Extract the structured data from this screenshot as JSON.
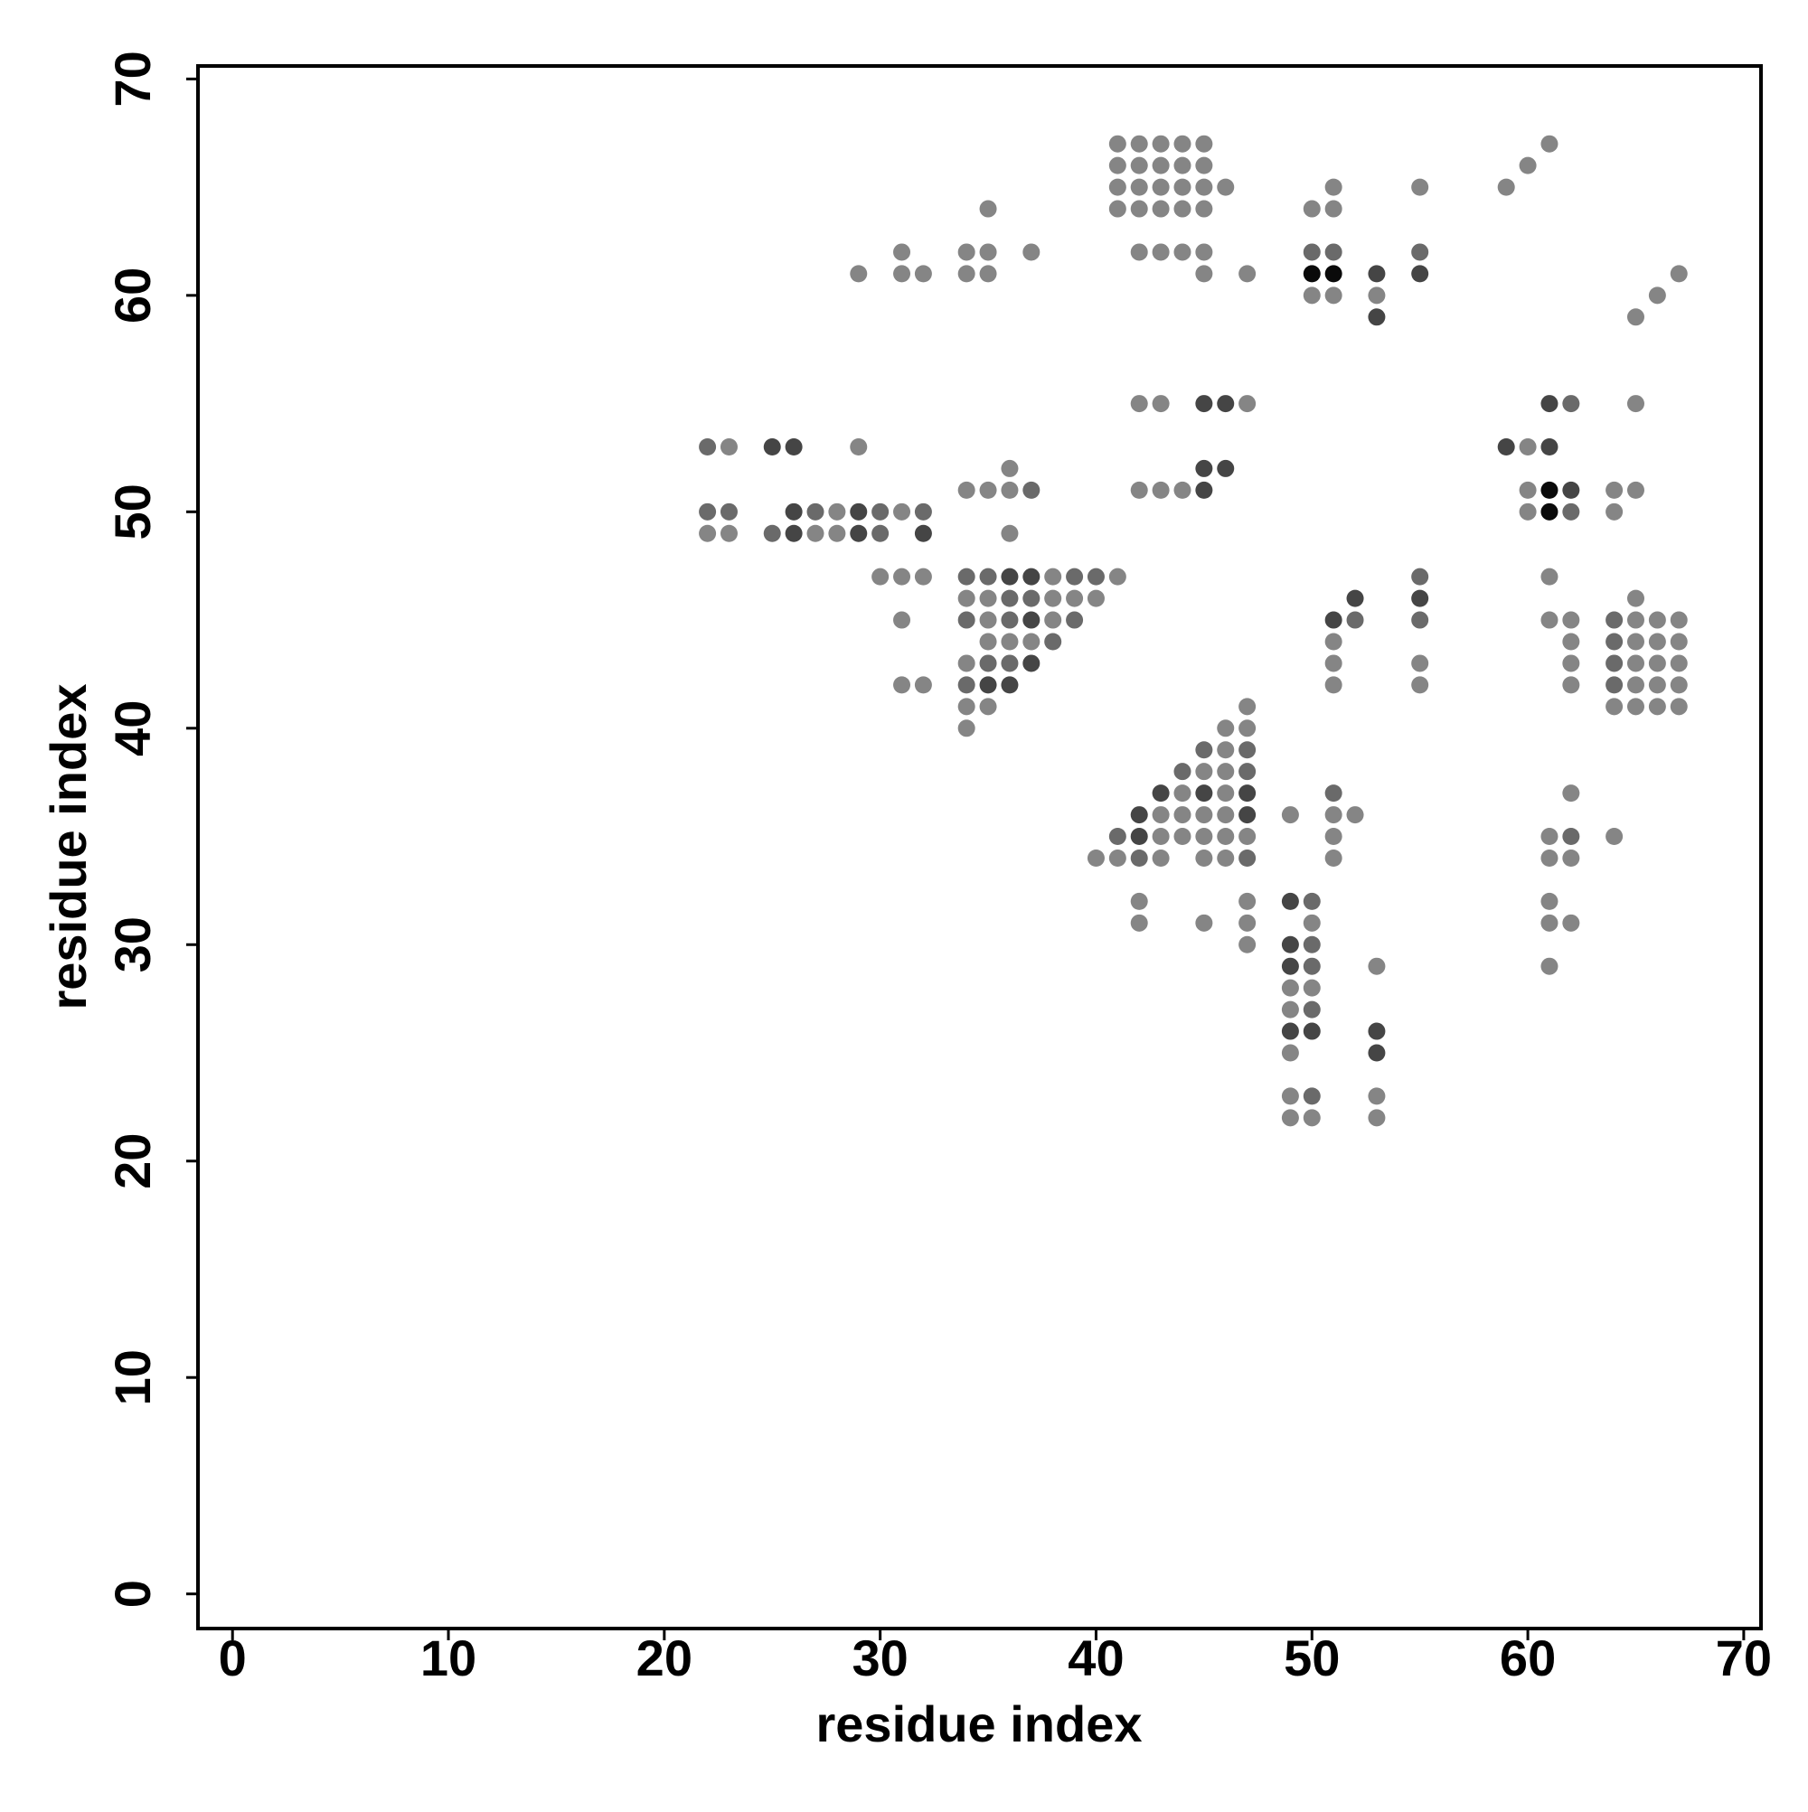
{
  "chart_data": {
    "type": "scatter",
    "xlabel": "residue index",
    "ylabel": "residue index",
    "xlim": [
      -1.6,
      70.8
    ],
    "ylim": [
      -1.6,
      70.6
    ],
    "xticks": [
      0,
      10,
      20,
      30,
      40,
      50,
      60,
      70
    ],
    "yticks": [
      0,
      10,
      20,
      30,
      40,
      50,
      60,
      70
    ],
    "grid": false,
    "series": [
      {
        "color": "#858585",
        "x": [
          41,
          42,
          43,
          44,
          45,
          61,
          41,
          42,
          43,
          44,
          45,
          60,
          41,
          42,
          43,
          44,
          45,
          46,
          51,
          55,
          59,
          35,
          41,
          42,
          43,
          44,
          45,
          50,
          51,
          31,
          34,
          35,
          37,
          42,
          43,
          44,
          45,
          29,
          31,
          32,
          34,
          35,
          45,
          47,
          67,
          50,
          51,
          53,
          66,
          65,
          42,
          43,
          47,
          65,
          23,
          29,
          60,
          36,
          34,
          35,
          36,
          42,
          43,
          44,
          60,
          64,
          65,
          28,
          31,
          60,
          64,
          22,
          23,
          27,
          28,
          36,
          30,
          31,
          32,
          38,
          41,
          61,
          34,
          35,
          38,
          39,
          40,
          65,
          31,
          35,
          38,
          61,
          62,
          65,
          66,
          67,
          35,
          36,
          37,
          51,
          62,
          65,
          66,
          67,
          34,
          51,
          55,
          62,
          65,
          66,
          67,
          31,
          32,
          51,
          55,
          62,
          65,
          66,
          67,
          34,
          35,
          47,
          64,
          65,
          66,
          67,
          34,
          46,
          47,
          46,
          45,
          46,
          44,
          46,
          62,
          43,
          44,
          45,
          46,
          49,
          51,
          52,
          43,
          44,
          45,
          46,
          47,
          51,
          61,
          64,
          40,
          41,
          43,
          45,
          46,
          51,
          61,
          62,
          42,
          47,
          61,
          42,
          45,
          47,
          50,
          61,
          62,
          47,
          53,
          61,
          49,
          50,
          49,
          49,
          49,
          53,
          49,
          50,
          53
        ],
        "values": [
          67,
          67,
          67,
          67,
          67,
          67,
          66,
          66,
          66,
          66,
          66,
          66,
          65,
          65,
          65,
          65,
          65,
          65,
          65,
          65,
          65,
          64,
          64,
          64,
          64,
          64,
          64,
          64,
          64,
          62,
          62,
          62,
          62,
          62,
          62,
          62,
          62,
          61,
          61,
          61,
          61,
          61,
          61,
          61,
          61,
          60,
          60,
          60,
          60,
          59,
          55,
          55,
          55,
          55,
          53,
          53,
          53,
          52,
          51,
          51,
          51,
          51,
          51,
          51,
          51,
          51,
          51,
          50,
          50,
          50,
          50,
          49,
          49,
          49,
          49,
          49,
          47,
          47,
          47,
          47,
          47,
          47,
          46,
          46,
          46,
          46,
          46,
          46,
          45,
          45,
          45,
          45,
          45,
          45,
          45,
          45,
          44,
          44,
          44,
          44,
          44,
          44,
          44,
          44,
          43,
          43,
          43,
          43,
          43,
          43,
          43,
          42,
          42,
          42,
          42,
          42,
          42,
          42,
          42,
          41,
          41,
          41,
          41,
          41,
          41,
          41,
          40,
          40,
          40,
          39,
          38,
          38,
          37,
          37,
          37,
          36,
          36,
          36,
          36,
          36,
          36,
          36,
          35,
          35,
          35,
          35,
          35,
          35,
          35,
          35,
          34,
          34,
          34,
          34,
          34,
          34,
          34,
          34,
          32,
          32,
          32,
          31,
          31,
          31,
          31,
          31,
          31,
          30,
          29,
          29,
          28,
          28,
          27,
          25,
          23,
          23,
          22,
          22,
          22
        ]
      },
      {
        "color": "#6a6a6a",
        "x": [
          50,
          51,
          55,
          62,
          22,
          37,
          22,
          23,
          27,
          30,
          32,
          62,
          25,
          30,
          34,
          35,
          39,
          40,
          55,
          36,
          37,
          34,
          36,
          39,
          52,
          55,
          64,
          38,
          64,
          35,
          36,
          64,
          34,
          64,
          45,
          47,
          44,
          47,
          51,
          41,
          62,
          42,
          47,
          50,
          50,
          50,
          50,
          50
        ],
        "values": [
          62,
          62,
          62,
          55,
          53,
          51,
          50,
          50,
          50,
          50,
          50,
          50,
          49,
          49,
          47,
          47,
          47,
          47,
          47,
          46,
          46,
          45,
          45,
          45,
          45,
          45,
          45,
          44,
          44,
          43,
          43,
          43,
          42,
          42,
          39,
          39,
          38,
          38,
          37,
          35,
          35,
          34,
          34,
          32,
          30,
          29,
          27,
          23
        ]
      },
      {
        "color": "#454545",
        "x": [
          53,
          55,
          53,
          45,
          46,
          61,
          25,
          26,
          59,
          61,
          45,
          46,
          45,
          62,
          26,
          29,
          26,
          29,
          32,
          36,
          37,
          52,
          55,
          37,
          51,
          37,
          35,
          36,
          43,
          45,
          47,
          42,
          47,
          42,
          49,
          49,
          49,
          49,
          50,
          53,
          53
        ],
        "values": [
          61,
          61,
          59,
          55,
          55,
          55,
          53,
          53,
          53,
          53,
          52,
          52,
          51,
          51,
          50,
          50,
          49,
          49,
          49,
          47,
          47,
          46,
          46,
          45,
          45,
          43,
          42,
          42,
          37,
          37,
          37,
          36,
          36,
          35,
          32,
          30,
          29,
          26,
          26,
          26,
          25
        ]
      },
      {
        "color": "#0a0a0a",
        "x": [
          50,
          51,
          61,
          61
        ],
        "values": [
          61,
          61,
          51,
          50
        ]
      }
    ]
  }
}
